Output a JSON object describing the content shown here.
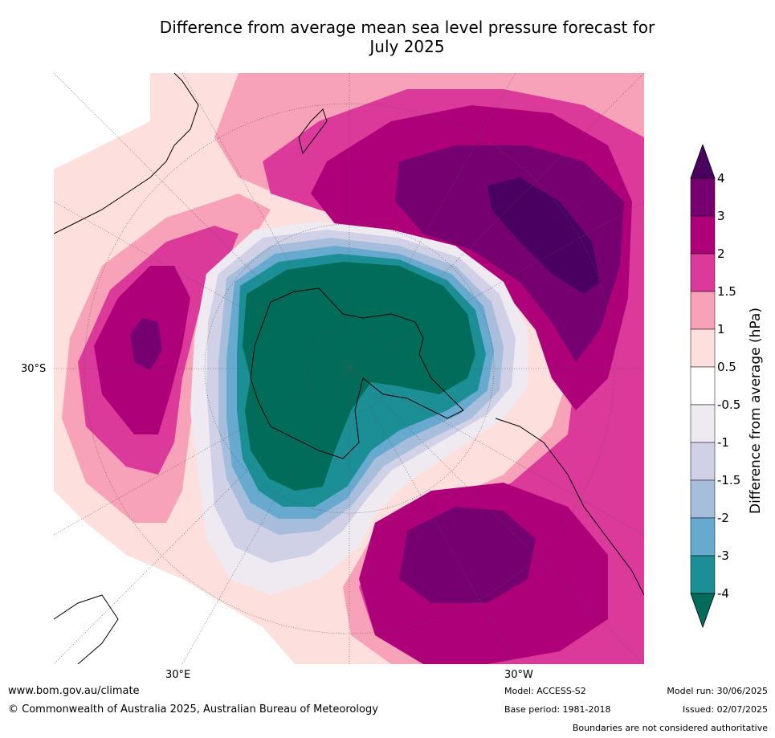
{
  "title_line1": "Difference from average mean sea level pressure forecast for",
  "title_line2": "July 2025",
  "lat_label": "30°S",
  "lon_labels": {
    "east": "30°E",
    "west": "30°W"
  },
  "colorbar": {
    "title": "Difference from average (hPa)",
    "ticks": [
      "4",
      "3",
      "2",
      "1.5",
      "1",
      "0.5",
      "-0.5",
      "-1",
      "-1.5",
      "-2",
      "-3",
      "-4"
    ],
    "bins": [
      {
        "range": "> 4",
        "color": "#4a0060"
      },
      {
        "range": "3 to 4",
        "color": "#770070"
      },
      {
        "range": "2 to 3",
        "color": "#ae0078"
      },
      {
        "range": "1.5 to 2",
        "color": "#db3a9b"
      },
      {
        "range": "1 to 1.5",
        "color": "#f7a2b8"
      },
      {
        "range": "0.5 to 1",
        "color": "#fde0dd"
      },
      {
        "range": "-0.5 to 0.5",
        "color": "#ffffff"
      },
      {
        "range": "-1 to -0.5",
        "color": "#efeaf2"
      },
      {
        "range": "-1.5 to -1",
        "color": "#d0d1e6"
      },
      {
        "range": "-2 to -1.5",
        "color": "#a6bddb"
      },
      {
        "range": "-3 to -2",
        "color": "#67a9cf"
      },
      {
        "range": "-4 to -3",
        "color": "#1c8f96"
      },
      {
        "range": "< -4",
        "color": "#016c59"
      }
    ]
  },
  "footer": {
    "website": "www.bom.gov.au/climate",
    "copyright": "© Commonwealth of Australia 2025, Australian Bureau of Meteorology",
    "model": "Model: ACCESS-S2",
    "base_period": "Base period: 1981-2018",
    "model_run": "Model run: 30/06/2025",
    "issued": "Issued: 02/07/2025",
    "disclaimer": "Boundaries are not considered authoritative"
  }
}
